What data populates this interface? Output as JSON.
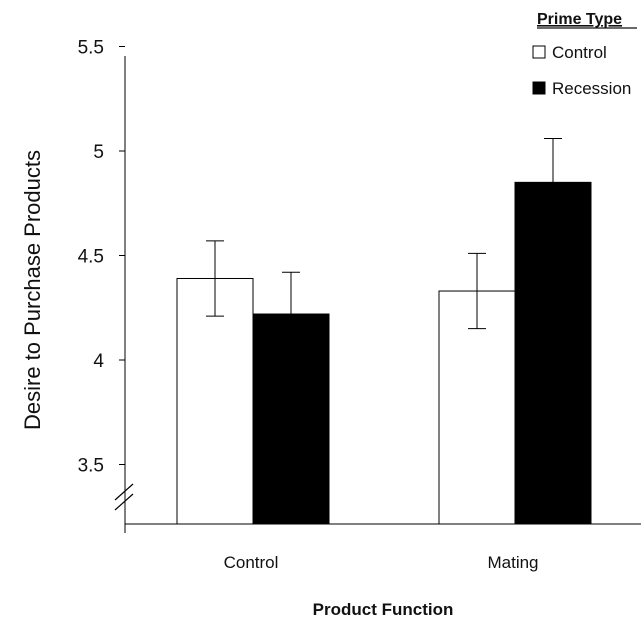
{
  "chart_data": {
    "type": "bar",
    "categories": [
      "Control",
      "Mating"
    ],
    "series": [
      {
        "name": "Control",
        "color": "#ffffff",
        "values": [
          4.39,
          4.33
        ],
        "error": [
          0.18,
          0.18
        ]
      },
      {
        "name": "Recession",
        "color": "#000000",
        "values": [
          4.22,
          4.85
        ],
        "error": [
          0.2,
          0.21
        ]
      }
    ],
    "xlabel": "Product Function",
    "ylabel": "Desire to Purchase Products",
    "yticks": [
      "3.5",
      "4",
      "4.5",
      "5",
      "5.5"
    ],
    "ylim": [
      3.18,
      5.5
    ],
    "axis_break": true,
    "grid": false,
    "legend": {
      "title": "Prime Type",
      "position": "top-right"
    }
  }
}
